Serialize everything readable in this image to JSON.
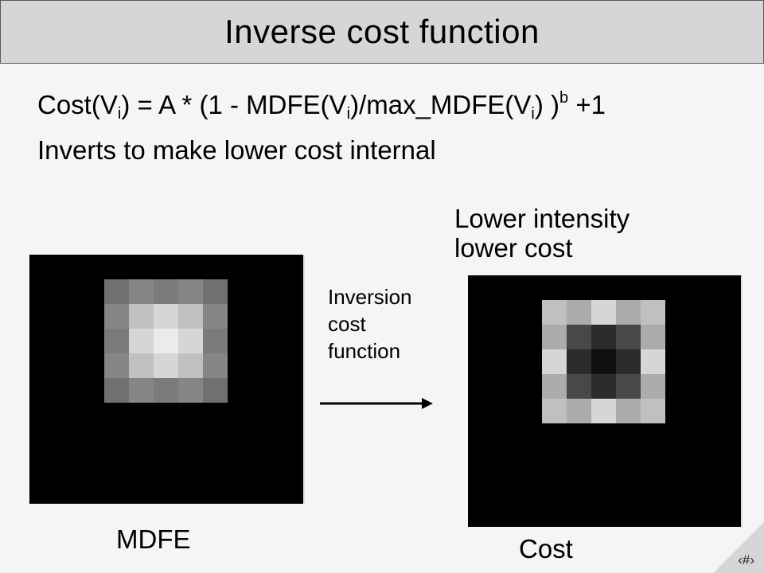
{
  "slide": {
    "title": "Inverse cost function",
    "formula": {
      "p1": "Cost(V",
      "s1": "i",
      "p2": ") = A * (1 - MDFE(V",
      "s2": "i",
      "p3": ")/max_MDFE(V",
      "s3": "i",
      "p4": ") )",
      "sup": "b",
      "p5": " +1"
    },
    "subtext": "Inverts to make lower cost internal",
    "right_caption": [
      "Lower intensity",
      "lower cost"
    ],
    "arrow_label": [
      "Inversion",
      "cost",
      "function"
    ],
    "left_label": "MDFE",
    "right_label": "Cost",
    "slide_number": "‹#›"
  },
  "images": {
    "mdfe_grid": [
      [
        "#707070",
        "#868686",
        "#7b7b7b",
        "#868686",
        "#707070"
      ],
      [
        "#868686",
        "#c0c0c0",
        "#d6d6d6",
        "#c0c0c0",
        "#868686"
      ],
      [
        "#7b7b7b",
        "#d6d6d6",
        "#ebebeb",
        "#d6d6d6",
        "#7b7b7b"
      ],
      [
        "#868686",
        "#c0c0c0",
        "#d6d6d6",
        "#c0c0c0",
        "#868686"
      ],
      [
        "#707070",
        "#868686",
        "#7b7b7b",
        "#868686",
        "#707070"
      ]
    ],
    "cost_grid": [
      [
        "#c0c0c0",
        "#ababab",
        "#d6d6d6",
        "#ababab",
        "#c0c0c0"
      ],
      [
        "#ababab",
        "#484848",
        "#2b2b2b",
        "#484848",
        "#ababab"
      ],
      [
        "#d6d6d6",
        "#2b2b2b",
        "#0f0f0f",
        "#2b2b2b",
        "#d6d6d6"
      ],
      [
        "#ababab",
        "#484848",
        "#2b2b2b",
        "#484848",
        "#ababab"
      ],
      [
        "#c0c0c0",
        "#ababab",
        "#d6d6d6",
        "#ababab",
        "#c0c0c0"
      ]
    ]
  },
  "colors": {
    "background": "#f5f5f5",
    "title_bar": "#d6d6d6",
    "image_background": "#000000",
    "arrow": "#000000"
  }
}
